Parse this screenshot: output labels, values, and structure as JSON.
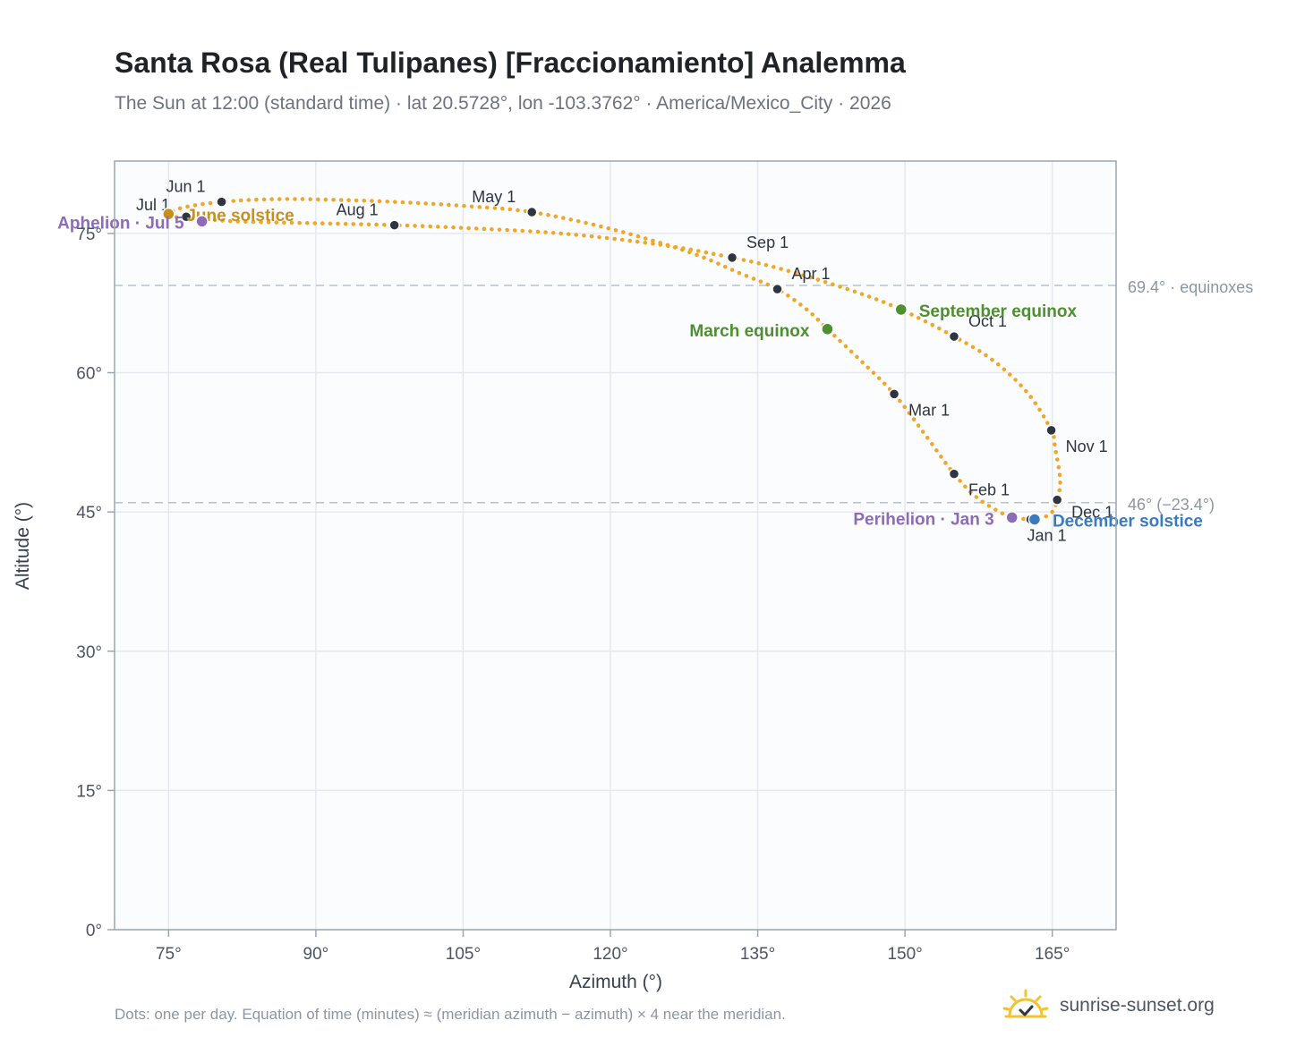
{
  "header": {
    "title": "Santa Rosa (Real Tulipanes) [Fraccionamiento] Analemma",
    "subtitle": "The Sun at 12:00 (standard time) · lat 20.5728°, lon -103.3762° · America/Mexico_City · 2026"
  },
  "footer": {
    "note": "Dots: one per day. Equation of time (minutes) ≈ (meridian azimuth − azimuth) × 4 near the meridian.",
    "brand": "sunrise-sunset.org"
  },
  "colors": {
    "curve": "#f2a628",
    "month_marker": "#2f3540",
    "equinox": "#4e8f2f",
    "june_solstice": "#c8901a",
    "december_solstice": "#3a7bbf",
    "apsis": "#8e6bb8",
    "reference_line": "#b6c2cf"
  },
  "chart_data": {
    "type": "scatter",
    "xlabel": "Azimuth (°)",
    "ylabel": "Altitude (°)",
    "xlim": [
      69.5,
      171.5
    ],
    "ylim": [
      0,
      82.8
    ],
    "x_ticks": [
      75,
      90,
      105,
      120,
      135,
      150,
      165
    ],
    "x_tick_labels": [
      "75°",
      "90°",
      "105°",
      "120°",
      "135°",
      "150°",
      "165°"
    ],
    "y_ticks": [
      0,
      15,
      30,
      45,
      60,
      75
    ],
    "y_tick_labels": [
      "0°",
      "15°",
      "30°",
      "45°",
      "60°",
      "75°"
    ],
    "grid": true,
    "reference_lines": [
      {
        "y": 69.4,
        "label": "69.4° · equinoxes"
      },
      {
        "y": 46.0,
        "label": "46° (−23.4°)"
      }
    ],
    "monthly_markers": [
      {
        "label": "Jan 1",
        "x": 162.8,
        "y": 44.2
      },
      {
        "label": "Feb 1",
        "x": 155.0,
        "y": 49.1
      },
      {
        "label": "Mar 1",
        "x": 148.9,
        "y": 57.7
      },
      {
        "label": "Apr 1",
        "x": 137.0,
        "y": 69.0
      },
      {
        "label": "May 1",
        "x": 112.0,
        "y": 77.3
      },
      {
        "label": "Jun 1",
        "x": 80.4,
        "y": 78.4
      },
      {
        "label": "Jul 1",
        "x": 76.8,
        "y": 76.8
      },
      {
        "label": "Aug 1",
        "x": 98.0,
        "y": 75.9
      },
      {
        "label": "Sep 1",
        "x": 132.4,
        "y": 72.4
      },
      {
        "label": "Oct 1",
        "x": 155.0,
        "y": 63.9
      },
      {
        "label": "Nov 1",
        "x": 164.9,
        "y": 53.8
      },
      {
        "label": "Dec 1",
        "x": 165.5,
        "y": 46.3
      }
    ],
    "events": [
      {
        "label": "March equinox",
        "x": 142.1,
        "y": 64.7,
        "kind": "equinox"
      },
      {
        "label": "September equinox",
        "x": 149.6,
        "y": 66.8,
        "kind": "equinox"
      },
      {
        "label": "June solstice",
        "x": 75.0,
        "y": 77.1,
        "kind": "june_solstice"
      },
      {
        "label": "December solstice",
        "x": 163.2,
        "y": 44.2,
        "kind": "december_solstice"
      },
      {
        "label": "Perihelion · Jan 3",
        "x": 160.9,
        "y": 44.4,
        "kind": "apsis"
      },
      {
        "label": "Aphelion · Jul 5",
        "x": 78.4,
        "y": 76.3,
        "kind": "apsis"
      }
    ],
    "path_keypoints": [
      [
        160.5,
        44.5
      ],
      [
        163.0,
        44.2
      ],
      [
        164.8,
        44.8
      ],
      [
        165.5,
        46.3
      ],
      [
        165.8,
        48.5
      ],
      [
        165.3,
        51.8
      ],
      [
        164.9,
        53.8
      ],
      [
        162.5,
        57.8
      ],
      [
        159.0,
        61.3
      ],
      [
        155.0,
        63.9
      ],
      [
        149.6,
        66.8
      ],
      [
        145.0,
        68.7
      ],
      [
        138.0,
        71.0
      ],
      [
        132.4,
        72.4
      ],
      [
        125.0,
        73.8
      ],
      [
        115.0,
        75.0
      ],
      [
        105.0,
        75.6
      ],
      [
        98.0,
        75.9
      ],
      [
        90.0,
        76.1
      ],
      [
        82.0,
        76.3
      ],
      [
        78.0,
        76.6
      ],
      [
        75.5,
        76.8
      ],
      [
        75.0,
        77.1
      ],
      [
        76.5,
        77.8
      ],
      [
        80.4,
        78.4
      ],
      [
        86.0,
        78.7
      ],
      [
        93.0,
        78.6
      ],
      [
        100.0,
        78.3
      ],
      [
        106.0,
        77.9
      ],
      [
        112.0,
        77.3
      ],
      [
        120.0,
        75.5
      ],
      [
        128.0,
        73.0
      ],
      [
        133.0,
        70.8
      ],
      [
        137.0,
        69.0
      ],
      [
        140.0,
        66.8
      ],
      [
        142.1,
        64.7
      ],
      [
        145.5,
        61.3
      ],
      [
        148.9,
        57.7
      ],
      [
        152.0,
        53.4
      ],
      [
        155.0,
        49.1
      ],
      [
        157.5,
        46.4
      ],
      [
        160.5,
        44.5
      ]
    ]
  }
}
